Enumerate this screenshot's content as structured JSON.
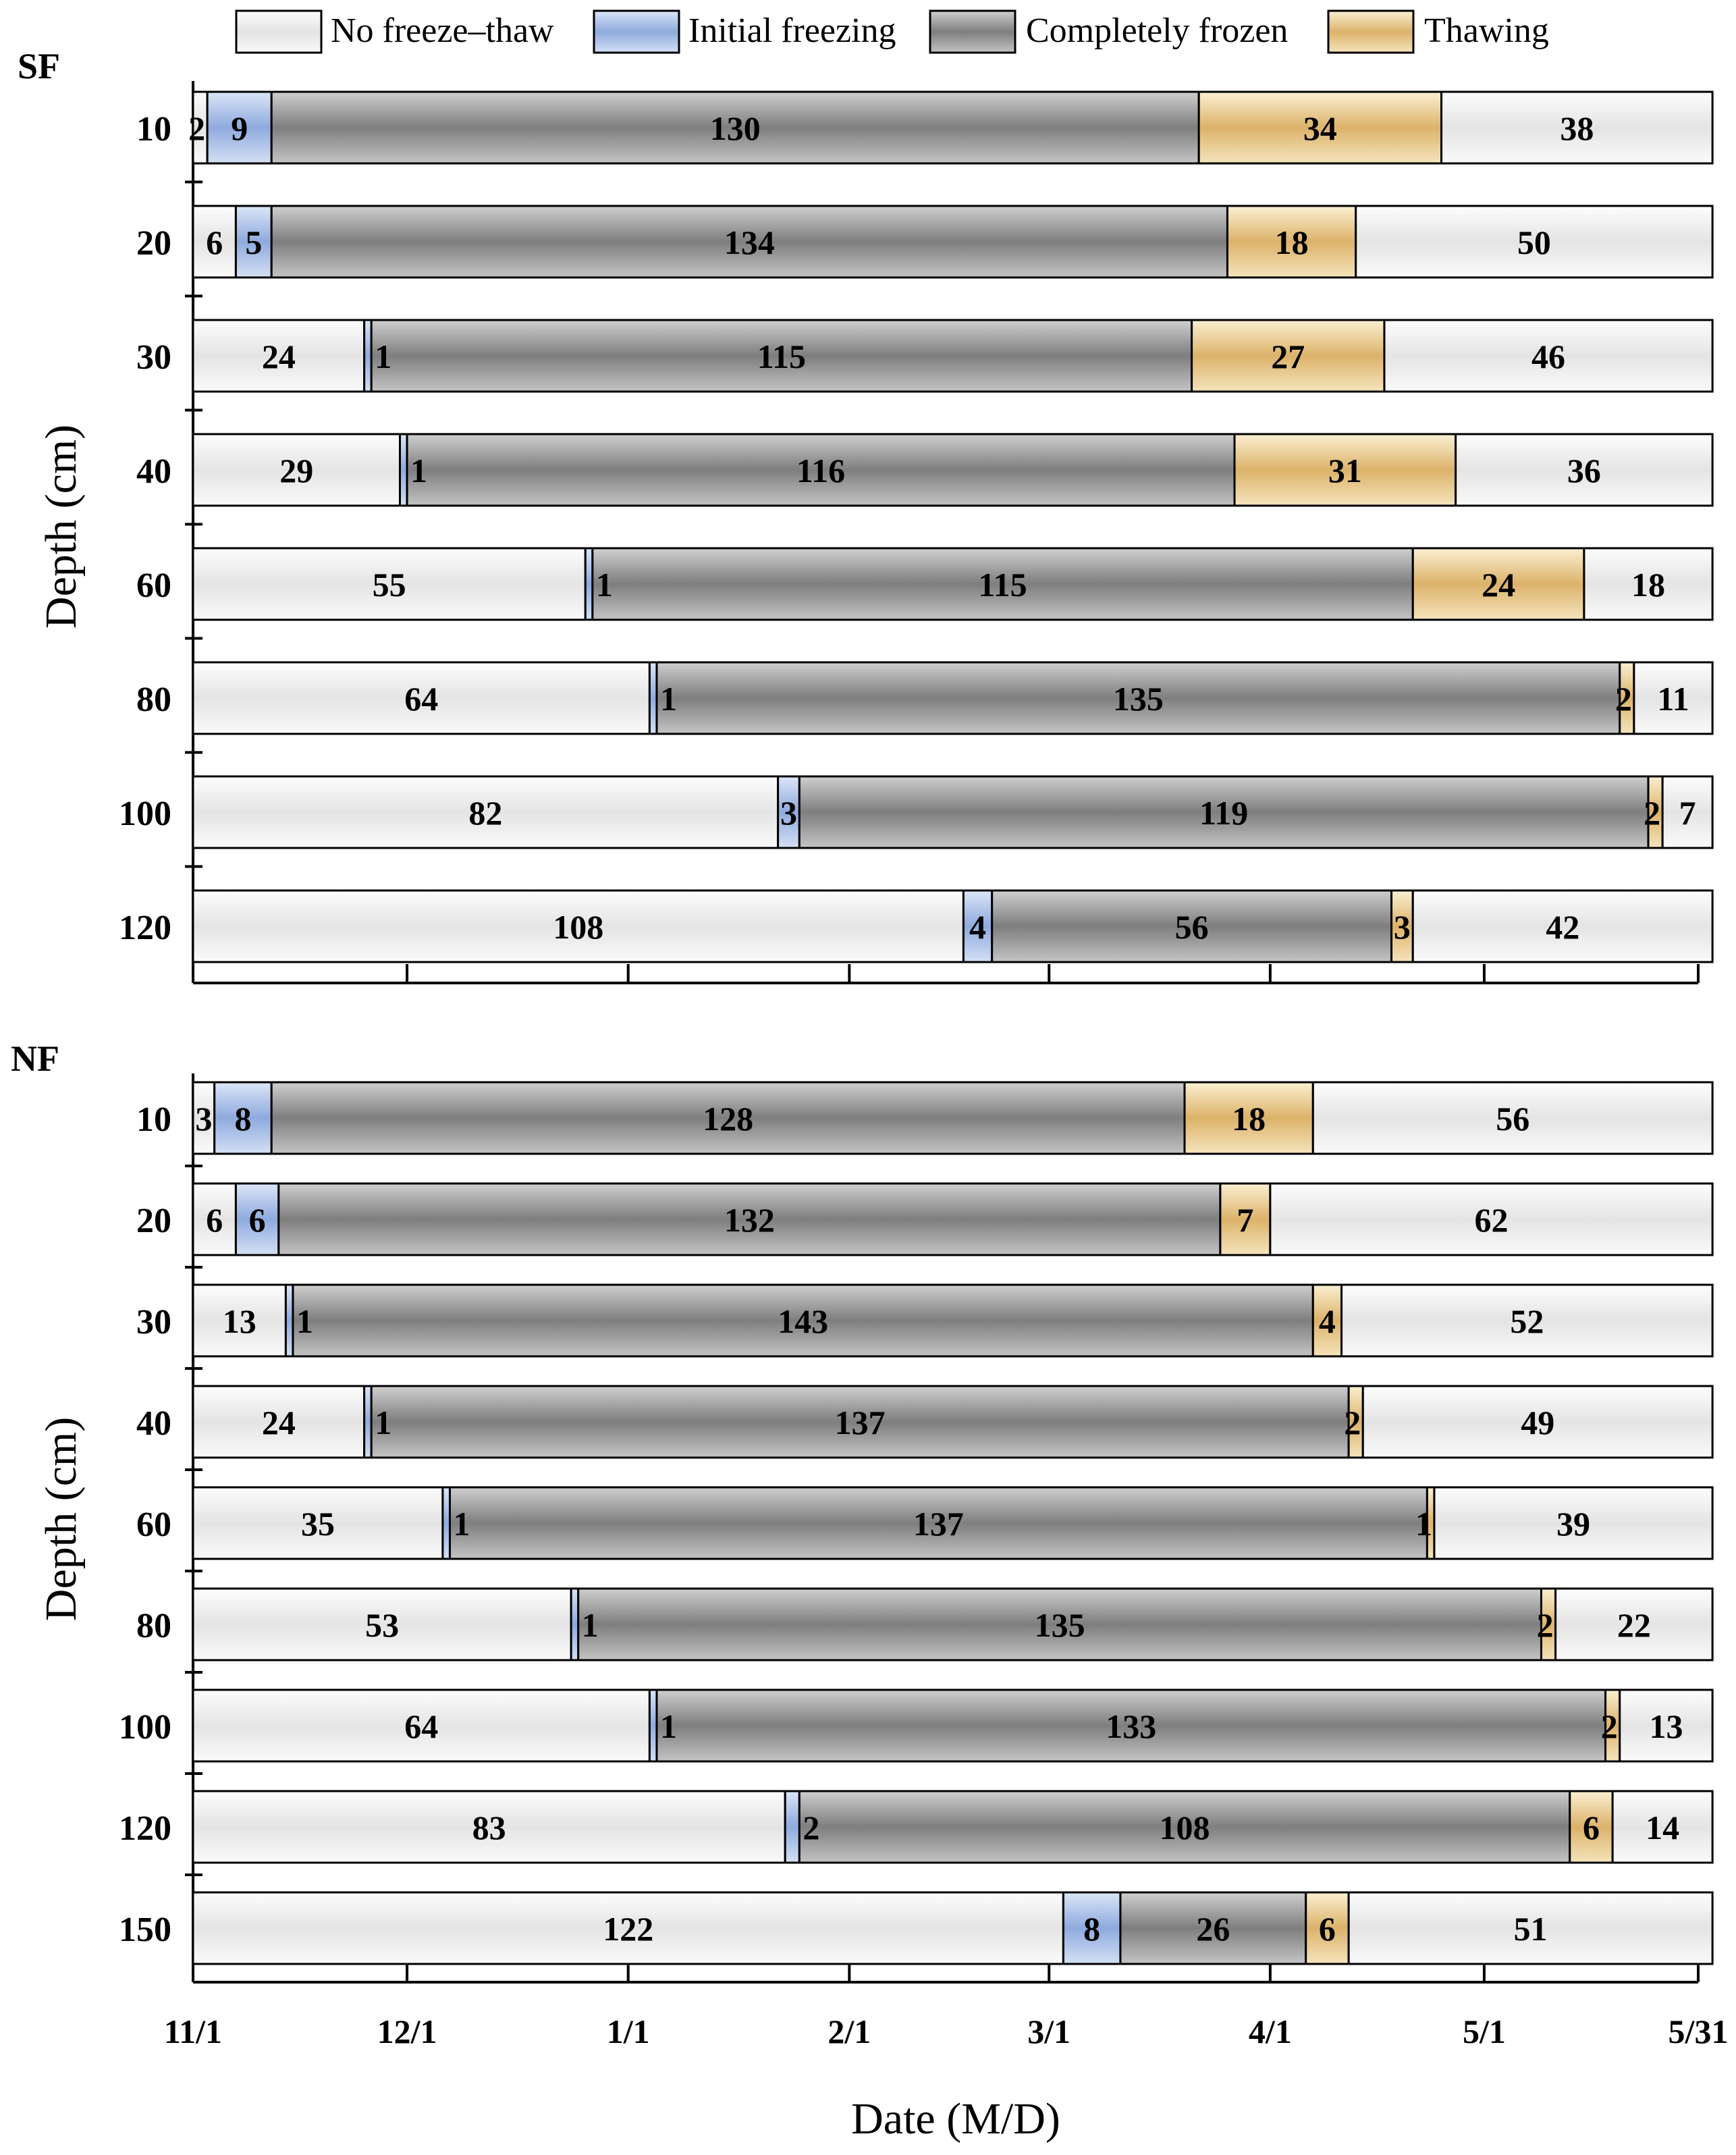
{
  "colors": {
    "no_freeze_thaw": "#ebebeb",
    "initial_freezing": "#a8bee4",
    "completely_frozen": "#8e8e8e",
    "thawing": "#e2c284"
  },
  "chart_data": {
    "type": "bar",
    "orientation": "horizontal",
    "stacked": true,
    "legend": [
      "No freeze–thaw",
      "Initial freezing",
      "Completely frozen",
      "Thawing"
    ],
    "xlabel": "Date (M/D)",
    "ylabel": "Depth (cm)",
    "xticks": [
      "11/1",
      "12/1",
      "1/1",
      "2/1",
      "3/1",
      "4/1",
      "5/1",
      "5/31"
    ],
    "xtick_days": [
      0,
      30,
      61,
      92,
      120,
      151,
      181,
      211
    ],
    "xlim": [
      0,
      211
    ],
    "panels": [
      {
        "name": "SF",
        "depths": [
          "10",
          "20",
          "30",
          "40",
          "60",
          "80",
          "100",
          "120"
        ],
        "series": [
          {
            "name": "No freeze–thaw",
            "values": [
              2,
              6,
              24,
              29,
              55,
              64,
              82,
              108
            ]
          },
          {
            "name": "Initial freezing",
            "values": [
              9,
              5,
              1,
              1,
              1,
              1,
              3,
              4
            ]
          },
          {
            "name": "Completely frozen",
            "values": [
              130,
              134,
              115,
              116,
              115,
              135,
              119,
              56
            ]
          },
          {
            "name": "Thawing",
            "values": [
              34,
              18,
              27,
              31,
              24,
              2,
              2,
              3
            ]
          },
          {
            "name": "No freeze–thaw",
            "values": [
              38,
              50,
              46,
              36,
              18,
              11,
              7,
              42
            ]
          }
        ]
      },
      {
        "name": "NF",
        "depths": [
          "10",
          "20",
          "30",
          "40",
          "60",
          "80",
          "100",
          "120",
          "150"
        ],
        "series": [
          {
            "name": "No freeze–thaw",
            "values": [
              3,
              6,
              13,
              24,
              35,
              53,
              64,
              83,
              122
            ]
          },
          {
            "name": "Initial freezing",
            "values": [
              8,
              6,
              1,
              1,
              1,
              1,
              1,
              2,
              8
            ]
          },
          {
            "name": "Completely frozen",
            "values": [
              128,
              132,
              143,
              137,
              137,
              135,
              133,
              108,
              26
            ]
          },
          {
            "name": "Thawing",
            "values": [
              18,
              7,
              4,
              2,
              1,
              2,
              2,
              6,
              6
            ]
          },
          {
            "name": "No freeze–thaw",
            "values": [
              56,
              62,
              52,
              49,
              39,
              22,
              13,
              14,
              51
            ]
          }
        ]
      }
    ]
  }
}
